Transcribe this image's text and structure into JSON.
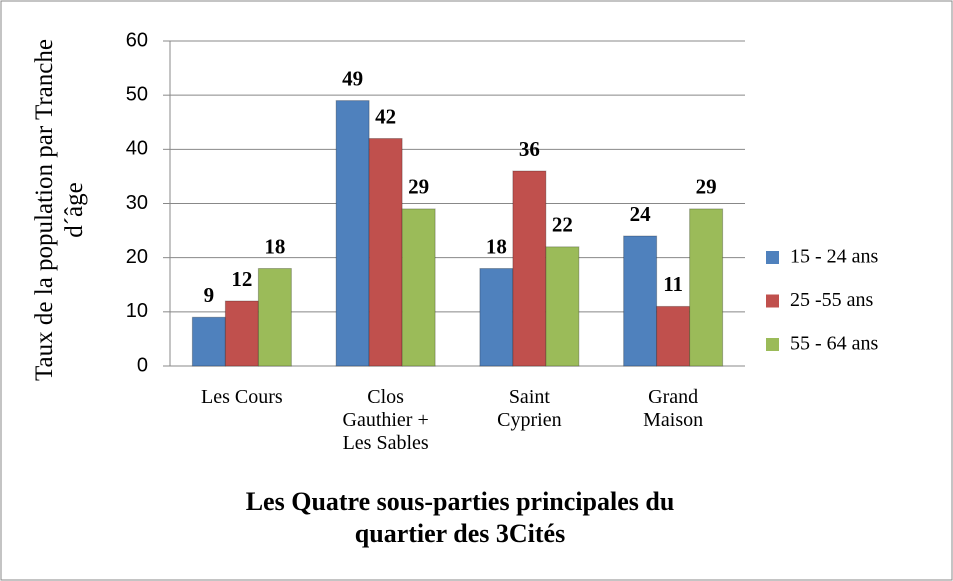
{
  "chart_data": {
    "type": "bar",
    "y_label": "Taux de la population par Tranche\nd´âge",
    "x_label": "Les Quatre sous-parties principales du quartier des 3Cités",
    "categories": [
      "Les Cours",
      "Clos\nGauthier +\nLes Sables",
      "Saint\nCyprien",
      "Grand\nMaison"
    ],
    "series": [
      {
        "name": "15 - 24 ans",
        "color": "#4f81bd",
        "values": [
          9,
          49,
          18,
          24
        ]
      },
      {
        "name": "25 -55 ans",
        "color": "#c0504d",
        "values": [
          12,
          42,
          36,
          11
        ]
      },
      {
        "name": "55 - 64 ans",
        "color": "#9bbb59",
        "values": [
          18,
          29,
          22,
          29
        ]
      }
    ],
    "ylim": [
      0,
      60
    ],
    "yticks": [
      0,
      10,
      20,
      30,
      40,
      50,
      60
    ],
    "grid": true,
    "legend": "right"
  }
}
